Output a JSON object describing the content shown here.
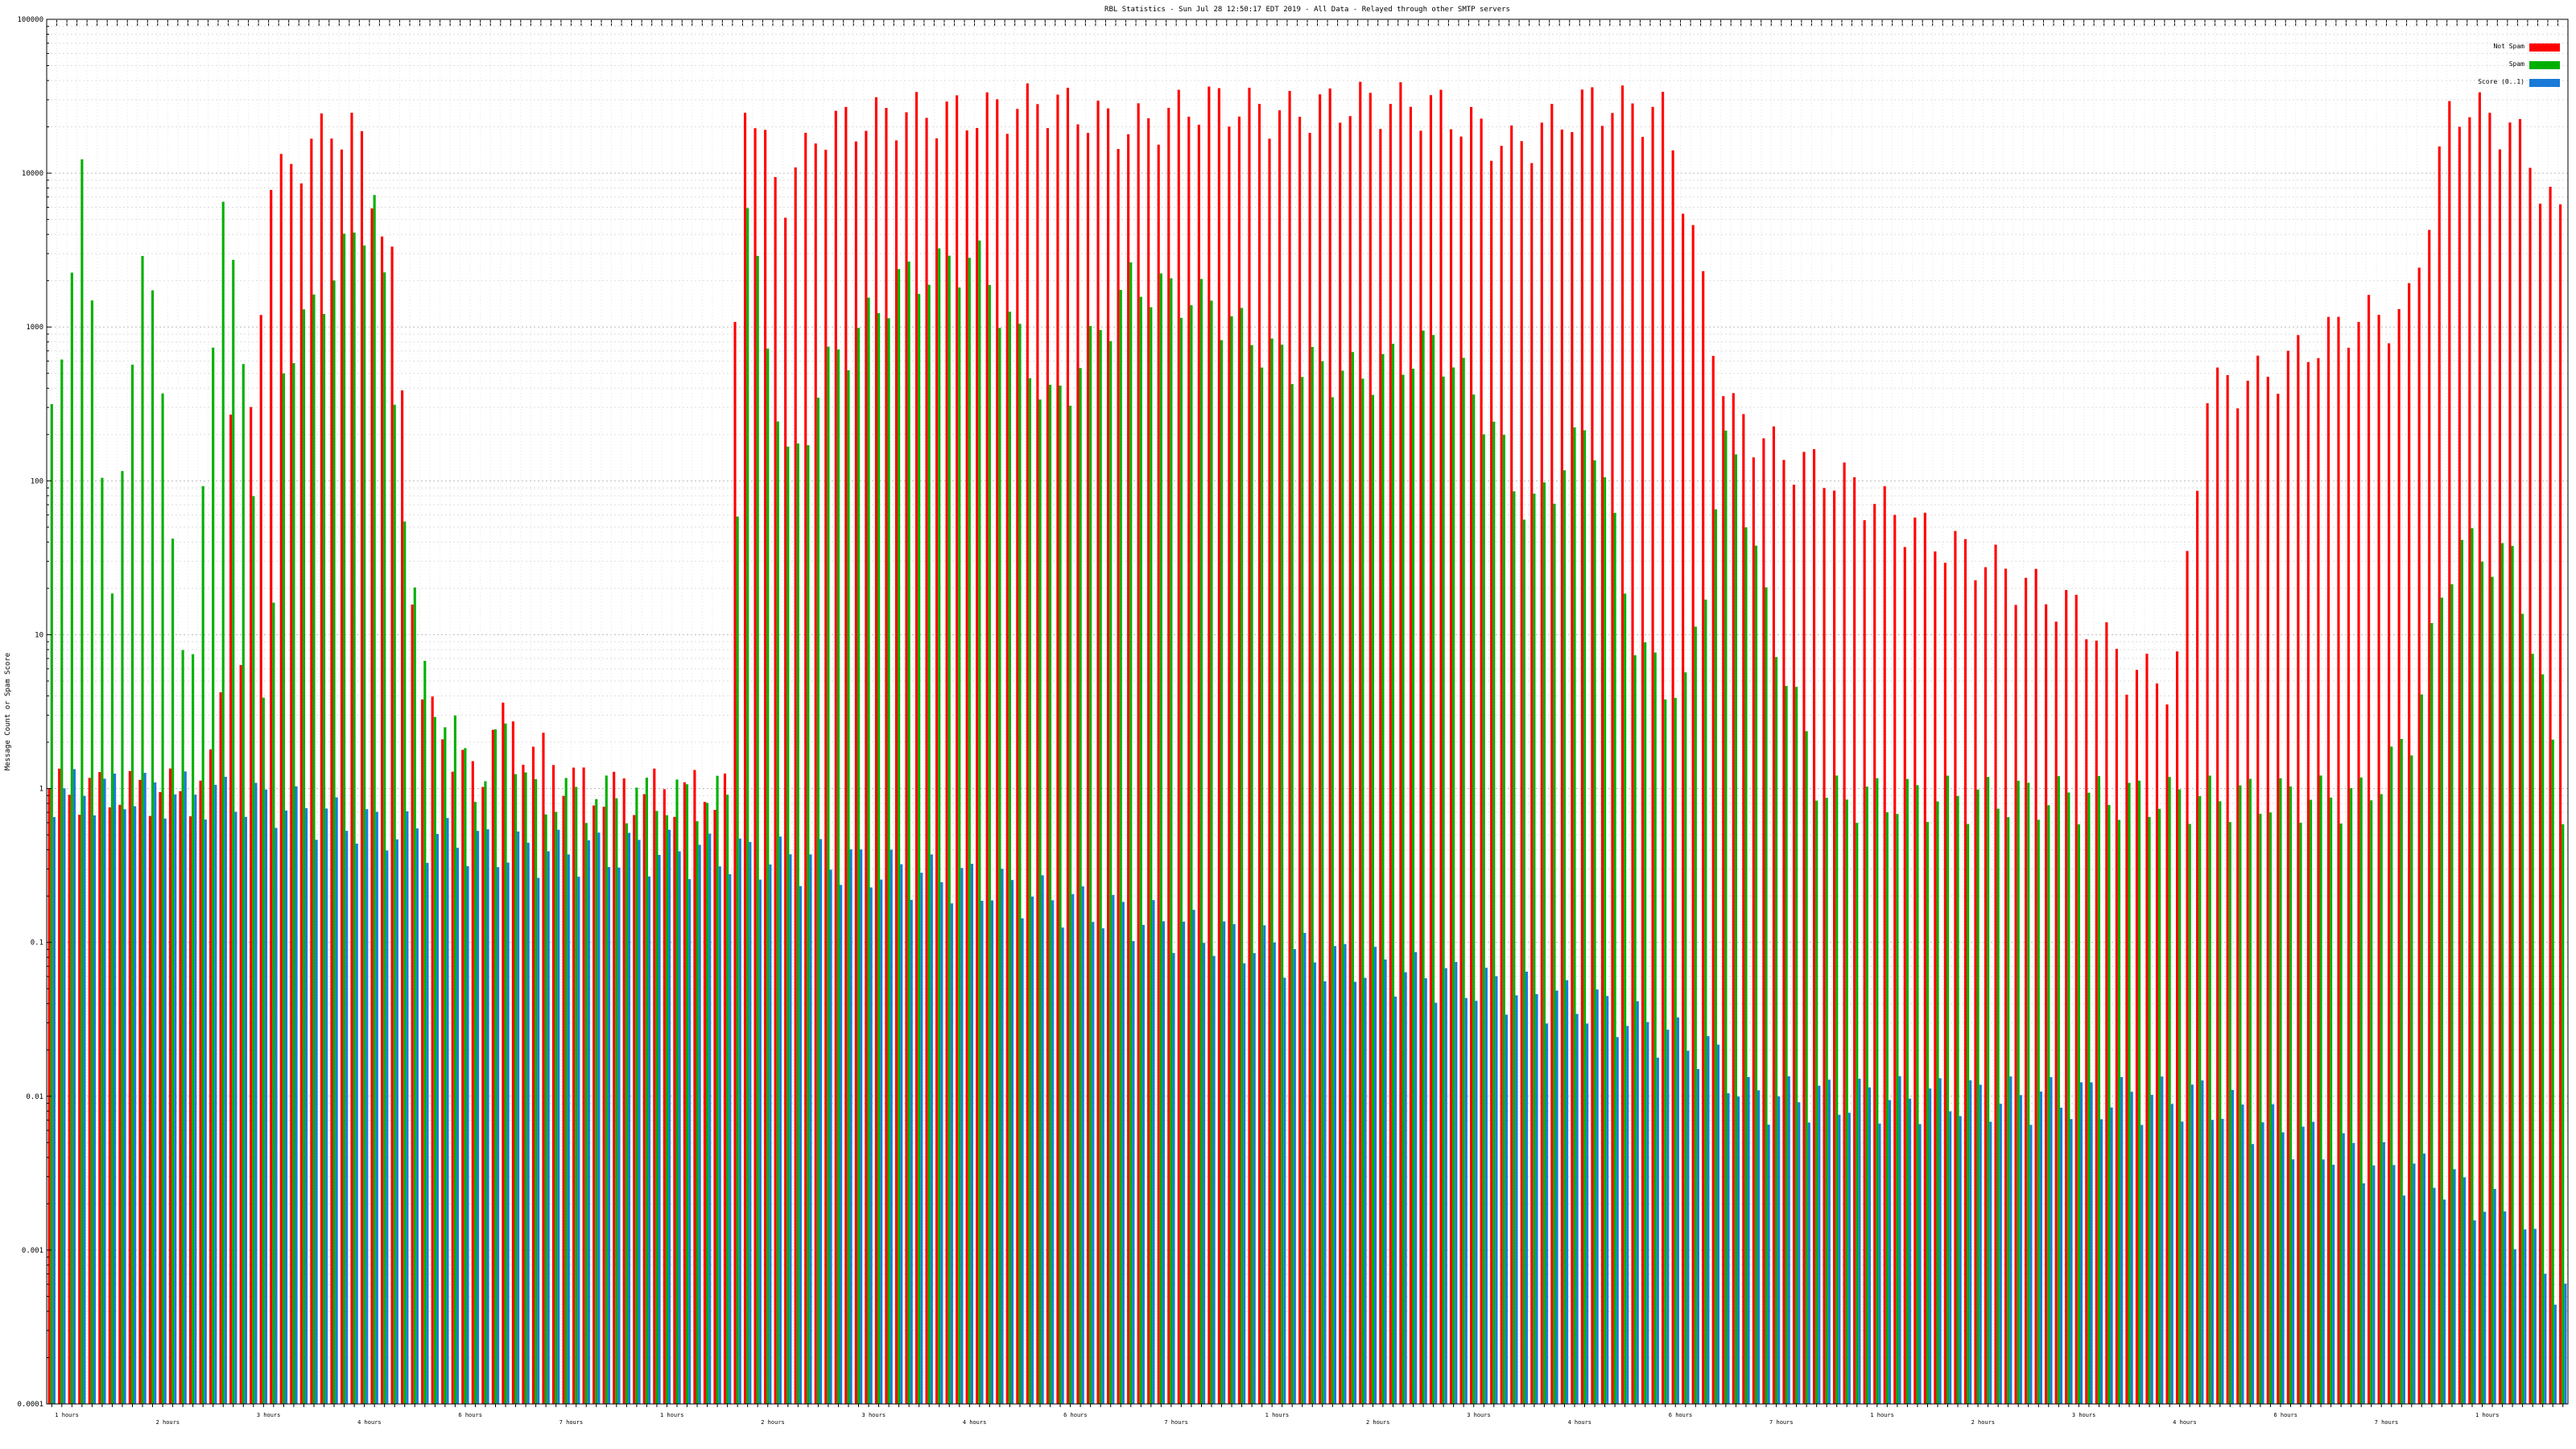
{
  "chart_data": {
    "type": "bar",
    "title": "RBL Statistics - Sun Jul 28 12:50:17 EDT 2019 - All Data - Relayed through other SMTP servers",
    "xlabel": "",
    "ylabel": "Message Count or Spam Score",
    "yscale": "log",
    "ylim": [
      0.0001,
      100000
    ],
    "yticks": [
      {
        "value": 0.0001,
        "label": "0.0001"
      },
      {
        "value": 0.001,
        "label": "0.001"
      },
      {
        "value": 0.01,
        "label": "0.01"
      },
      {
        "value": 0.1,
        "label": "0.1"
      },
      {
        "value": 1,
        "label": "1"
      },
      {
        "value": 10,
        "label": "10"
      },
      {
        "value": 100,
        "label": "100"
      },
      {
        "value": 1000,
        "label": "1000"
      },
      {
        "value": 10000,
        "label": "10000"
      },
      {
        "value": 100000,
        "label": "100000"
      }
    ],
    "grid": true,
    "legend_position": "top-right",
    "categories_count": 250,
    "sample_category_labels": [
      "1 hours",
      "2 hours",
      "3 hours",
      "4 hours",
      "6 hours",
      "7 hours"
    ],
    "series": [
      {
        "name": "Not Spam",
        "color": "#ff0000",
        "anchors": [
          [
            0,
            1
          ],
          [
            20,
            1
          ],
          [
            21,
            1.4
          ],
          [
            22,
            0.9
          ],
          [
            23,
            900
          ],
          [
            24,
            180
          ],
          [
            25,
            3
          ],
          [
            26,
            230
          ],
          [
            27,
            400
          ],
          [
            28,
            8000
          ],
          [
            32,
            12000
          ],
          [
            36,
            20000
          ],
          [
            40,
            20000
          ],
          [
            45,
            2000
          ],
          [
            48,
            4
          ],
          [
            56,
            1
          ],
          [
            57,
            3
          ],
          [
            58,
            3
          ],
          [
            70,
            1
          ],
          [
            88,
            1
          ],
          [
            89,
            800
          ],
          [
            90,
            40000
          ],
          [
            95,
            7000
          ],
          [
            100,
            20000
          ],
          [
            110,
            25000
          ],
          [
            120,
            25000
          ],
          [
            130,
            30000
          ],
          [
            140,
            20000
          ],
          [
            150,
            30000
          ],
          [
            160,
            25000
          ],
          [
            170,
            30000
          ],
          [
            180,
            28000
          ],
          [
            190,
            15000
          ],
          [
            200,
            30000
          ],
          [
            210,
            25000
          ],
          [
            218,
            300
          ],
          [
            225,
            150
          ],
          [
            232,
            110
          ],
          [
            240,
            60
          ],
          [
            246,
            40
          ],
          [
            252,
            30
          ],
          [
            258,
            20
          ],
          [
            264,
            14
          ],
          [
            270,
            6
          ],
          [
            276,
            5
          ],
          [
            280,
            400
          ],
          [
            288,
            500
          ],
          [
            294,
            800
          ],
          [
            300,
            1200
          ],
          [
            306,
            1200
          ],
          [
            312,
            30000
          ],
          [
            320,
            20000
          ],
          [
            326,
            5000
          ]
        ]
      },
      {
        "name": "Spam",
        "color": "#00b000",
        "anchors": [
          [
            0,
            250
          ],
          [
            4,
            10000
          ],
          [
            8,
            15
          ],
          [
            12,
            6000
          ],
          [
            18,
            3
          ],
          [
            22,
            9000
          ],
          [
            26,
            200
          ],
          [
            28,
            0.9
          ],
          [
            30,
            600
          ],
          [
            36,
            2000
          ],
          [
            42,
            7000
          ],
          [
            48,
            6
          ],
          [
            56,
            1
          ],
          [
            59,
            3
          ],
          [
            62,
            0.9
          ],
          [
            88,
            0.9
          ],
          [
            90,
            7000
          ],
          [
            96,
            100
          ],
          [
            100,
            500
          ],
          [
            110,
            2000
          ],
          [
            120,
            3000
          ],
          [
            130,
            300
          ],
          [
            140,
            2000
          ],
          [
            150,
            1500
          ],
          [
            160,
            600
          ],
          [
            170,
            500
          ],
          [
            180,
            800
          ],
          [
            186,
            300
          ],
          [
            192,
            60
          ],
          [
            200,
            250
          ],
          [
            206,
            8
          ],
          [
            212,
            4
          ],
          [
            218,
            250
          ],
          [
            222,
            20
          ],
          [
            230,
            0.9
          ],
          [
            300,
            0.9
          ],
          [
            306,
            2
          ],
          [
            312,
            40
          ],
          [
            320,
            30
          ],
          [
            326,
            0.9
          ]
        ]
      },
      {
        "name": "Score (0..1)",
        "color": "#1a7ad8",
        "anchors": [
          [
            0,
            1
          ],
          [
            20,
            0.95
          ],
          [
            30,
            0.8
          ],
          [
            40,
            0.6
          ],
          [
            60,
            0.4
          ],
          [
            80,
            0.4
          ],
          [
            100,
            0.35
          ],
          [
            120,
            0.25
          ],
          [
            140,
            0.15
          ],
          [
            160,
            0.09
          ],
          [
            180,
            0.06
          ],
          [
            200,
            0.04
          ],
          [
            215,
            0.02
          ],
          [
            220,
            0.01
          ],
          [
            279,
            0.01
          ],
          [
            290,
            0.006
          ],
          [
            300,
            0.004
          ],
          [
            310,
            0.003
          ],
          [
            320,
            0.0015
          ],
          [
            326,
            0.0005
          ]
        ]
      }
    ]
  }
}
